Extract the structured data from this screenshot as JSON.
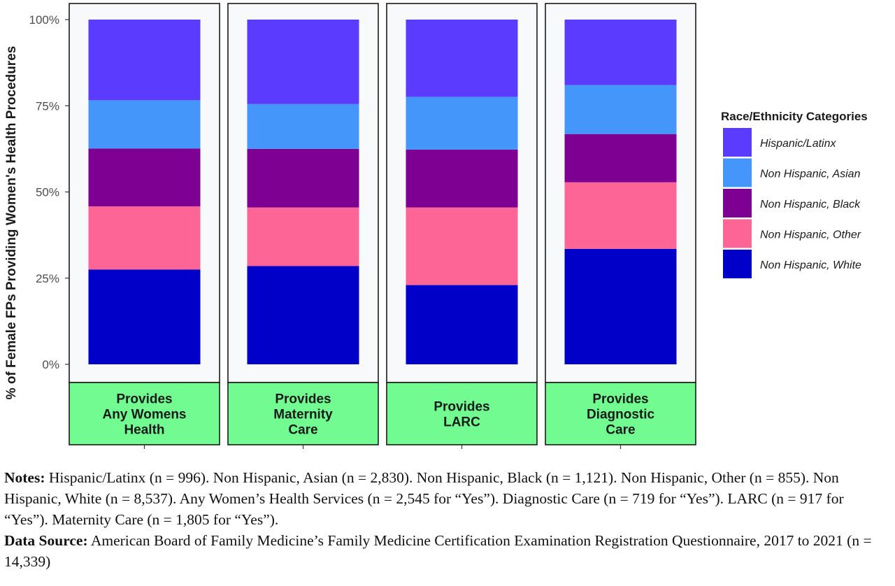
{
  "chart_data": {
    "type": "bar",
    "stacked": true,
    "ylabel": "% of Female FPs Providing Women's Health Procedures",
    "ylim": [
      0,
      1
    ],
    "yticks": [
      "0%",
      "25%",
      "50%",
      "75%",
      "100%"
    ],
    "categories": [
      [
        "Provides",
        "Any Womens",
        "Health"
      ],
      [
        "Provides",
        "Maternity",
        "Care"
      ],
      [
        "Provides",
        "LARC"
      ],
      [
        "Provides",
        "Diagnostic",
        "Care"
      ]
    ],
    "series": [
      {
        "name": "Non Hispanic, White",
        "color": "#0000c8",
        "values": [
          0.275,
          0.285,
          0.23,
          0.335
        ]
      },
      {
        "name": "Non Hispanic, Other",
        "color": "#fc6595",
        "values": [
          0.183,
          0.17,
          0.225,
          0.193
        ]
      },
      {
        "name": "Non Hispanic, Black",
        "color": "#7d0093",
        "values": [
          0.168,
          0.17,
          0.168,
          0.14
        ]
      },
      {
        "name": "Non Hispanic, Asian",
        "color": "#4496fa",
        "values": [
          0.14,
          0.13,
          0.153,
          0.142
        ]
      },
      {
        "name": "Hispanic/Latinx",
        "color": "#5b3bfe",
        "values": [
          0.234,
          0.245,
          0.224,
          0.19
        ]
      }
    ],
    "legend": {
      "title": "Race/Ethnicity Categories",
      "placement": "right",
      "order": [
        "Hispanic/Latinx",
        "Non Hispanic, Asian",
        "Non Hispanic, Black",
        "Non Hispanic, Other",
        "Non Hispanic, White"
      ]
    },
    "strip_color": "#72fb90",
    "panel_background": "#f7f9fb",
    "grid": false
  },
  "notes": {
    "notes_label": "Notes:",
    "notes_text": " Hispanic/Latinx (n = 996). Non Hispanic, Asian (n = 2,830). Non Hispanic, Black (n = 1,121). Non Hispanic, Other (n = 855). Non Hispanic, White (n = 8,537). Any Women’s Health Services (n = 2,545 for “Yes”). Diagnostic Care (n = 719 for “Yes”). LARC (n = 917 for “Yes”). Maternity Care (n = 1,805 for “Yes”).",
    "source_label": "Data Source:",
    "source_text": " American Board of Family Medicine’s Family Medicine Certification Examination Registration Questionnaire, 2017 to 2021 (n = 14,339)"
  }
}
